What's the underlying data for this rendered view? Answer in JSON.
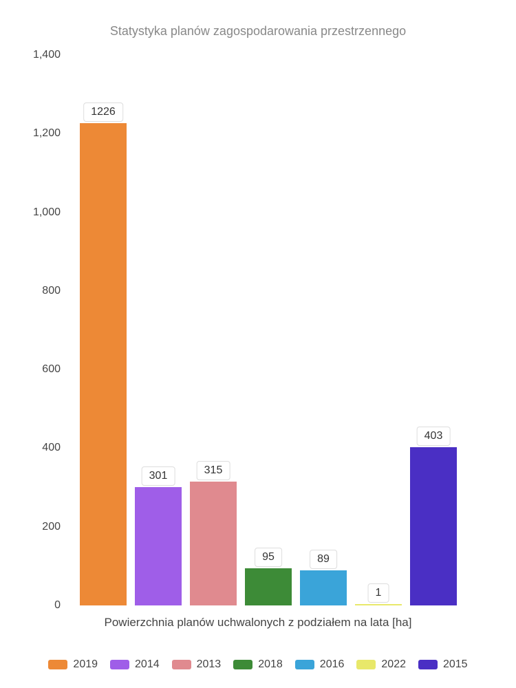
{
  "chart": {
    "type": "bar",
    "title": "Statystyka planów zagospodarowania przestrzennego",
    "title_fontsize": 18,
    "title_color": "#888888",
    "background_color": "#ffffff",
    "xlabel": "Powierzchnia planów uchwalonych z podziałem na lata [ha]",
    "label_fontsize": 17,
    "label_color": "#444444",
    "ylim": [
      0,
      1400
    ],
    "ytick_step": 200,
    "yticks": [
      {
        "value": 0,
        "label": "0"
      },
      {
        "value": 200,
        "label": "200"
      },
      {
        "value": 400,
        "label": "400"
      },
      {
        "value": 600,
        "label": "600"
      },
      {
        "value": 800,
        "label": "800"
      },
      {
        "value": 1000,
        "label": "1,000"
      },
      {
        "value": 1200,
        "label": "1,200"
      },
      {
        "value": 1400,
        "label": "1,400"
      }
    ],
    "tick_color": "#444444",
    "tick_fontsize": 16,
    "bars": [
      {
        "series": "2019",
        "value": 1226,
        "color": "#ed8936"
      },
      {
        "series": "2014",
        "value": 301,
        "color": "#9f5ee8"
      },
      {
        "series": "2013",
        "value": 315,
        "color": "#e08a8f"
      },
      {
        "series": "2018",
        "value": 95,
        "color": "#3d8b37"
      },
      {
        "series": "2016",
        "value": 89,
        "color": "#3aa4d9"
      },
      {
        "series": "2022",
        "value": 1,
        "color": "#e8e86a"
      },
      {
        "series": "2015",
        "value": 403,
        "color": "#4a2fc4"
      }
    ],
    "bar_width_ratio": 0.85,
    "value_label_bg": "#ffffff",
    "value_label_border": "#dddddd",
    "value_label_fontsize": 16,
    "value_label_color": "#333333",
    "legend_fontsize": 16,
    "legend_color": "#444444"
  }
}
